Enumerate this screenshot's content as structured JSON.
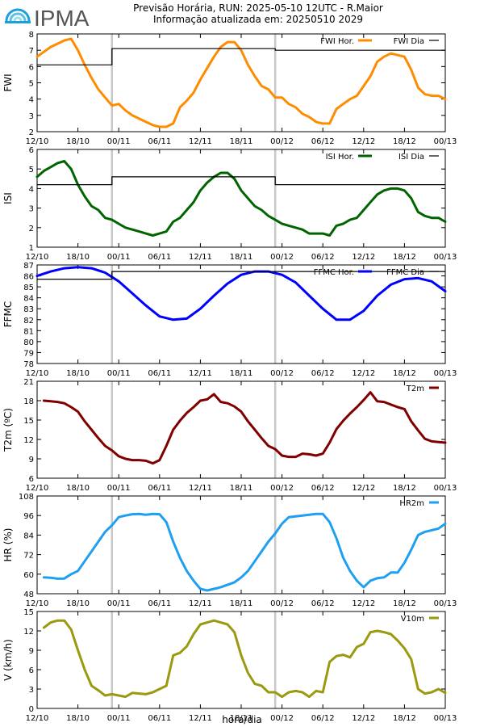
{
  "header": {
    "logo_text": "IPMA",
    "title_line1": "Previsão Horária, RUN: 2025-05-10 12UTC - R.Maior",
    "title_line2": "Informação atualizada em: 20250510 2029"
  },
  "chart_data": [
    {
      "type": "line",
      "ylabel": "FWI",
      "ylim": [
        2,
        8
      ],
      "yticks": [
        "2",
        "3",
        "4",
        "5",
        "6",
        "7",
        "8"
      ],
      "xticks": [
        "12/10",
        "18/10",
        "00/11",
        "06/11",
        "12/11",
        "18/11",
        "00/12",
        "06/12",
        "12/12",
        "18/12",
        "00/13"
      ],
      "xlim": [
        0,
        60
      ],
      "legend_position": "top-right",
      "colors": {
        "hourly": "#ff8c00",
        "daily": "#000000"
      },
      "series": [
        {
          "name": "FWI Hor.",
          "x": [
            0,
            1,
            2,
            3,
            4,
            5,
            6,
            7,
            8,
            9,
            10,
            11,
            12,
            13,
            14,
            15,
            16,
            17,
            18,
            19,
            20,
            21,
            22,
            23,
            24,
            25,
            26,
            27,
            28,
            29,
            30,
            31,
            32,
            33,
            34,
            35,
            36,
            37,
            38,
            39,
            40,
            41,
            42,
            43,
            44,
            45,
            46,
            47,
            48,
            49,
            50,
            51,
            52,
            53,
            54,
            55,
            56,
            57,
            58,
            59,
            60
          ],
          "values": [
            6.6,
            6.9,
            7.2,
            7.4,
            7.6,
            7.7,
            7.0,
            6.1,
            5.3,
            4.6,
            4.1,
            3.6,
            3.7,
            3.3,
            3.0,
            2.8,
            2.6,
            2.4,
            2.3,
            2.3,
            2.5,
            3.5,
            3.9,
            4.4,
            5.2,
            5.9,
            6.6,
            7.2,
            7.5,
            7.5,
            7.0,
            6.1,
            5.4,
            4.8,
            4.6,
            4.1,
            4.1,
            3.7,
            3.5,
            3.1,
            2.9,
            2.6,
            2.5,
            2.5,
            3.4,
            3.7,
            4.0,
            4.2,
            4.8,
            5.4,
            6.3,
            6.6,
            6.8,
            6.7,
            6.6,
            5.8,
            4.7,
            4.3,
            4.2,
            4.2,
            4.0
          ]
        },
        {
          "name": "FWI Dia",
          "x": [
            0,
            11,
            11,
            35,
            35,
            60
          ],
          "values": [
            6.1,
            6.1,
            7.1,
            7.1,
            7.0,
            7.0
          ]
        }
      ]
    },
    {
      "type": "line",
      "ylabel": "ISI",
      "ylim": [
        1,
        6
      ],
      "yticks": [
        "1",
        "2",
        "3",
        "4",
        "5",
        "6"
      ],
      "xticks": [
        "12/10",
        "18/10",
        "00/11",
        "06/11",
        "12/11",
        "18/11",
        "00/12",
        "06/12",
        "12/12",
        "18/12",
        "00/13"
      ],
      "xlim": [
        0,
        60
      ],
      "legend_position": "top-right",
      "colors": {
        "hourly": "#006400",
        "daily": "#000000"
      },
      "series": [
        {
          "name": "ISI Hor.",
          "x": [
            0,
            1,
            2,
            3,
            4,
            5,
            6,
            7,
            8,
            9,
            10,
            11,
            12,
            13,
            14,
            15,
            16,
            17,
            18,
            19,
            20,
            21,
            22,
            23,
            24,
            25,
            26,
            27,
            28,
            29,
            30,
            31,
            32,
            33,
            34,
            35,
            36,
            37,
            38,
            39,
            40,
            41,
            42,
            43,
            44,
            45,
            46,
            47,
            48,
            49,
            50,
            51,
            52,
            53,
            54,
            55,
            56,
            57,
            58,
            59,
            60
          ],
          "values": [
            4.6,
            4.9,
            5.1,
            5.3,
            5.4,
            5.0,
            4.2,
            3.6,
            3.1,
            2.9,
            2.5,
            2.4,
            2.2,
            2.0,
            1.9,
            1.8,
            1.7,
            1.6,
            1.7,
            1.8,
            2.3,
            2.5,
            2.9,
            3.3,
            3.9,
            4.3,
            4.6,
            4.8,
            4.8,
            4.5,
            3.9,
            3.5,
            3.1,
            2.9,
            2.6,
            2.4,
            2.2,
            2.1,
            2.0,
            1.9,
            1.7,
            1.7,
            1.7,
            1.6,
            2.1,
            2.2,
            2.4,
            2.5,
            2.9,
            3.3,
            3.7,
            3.9,
            4.0,
            4.0,
            3.9,
            3.5,
            2.8,
            2.6,
            2.5,
            2.5,
            2.3
          ]
        },
        {
          "name": "ISI Dia",
          "x": [
            0,
            11,
            11,
            35,
            35,
            60
          ],
          "values": [
            4.2,
            4.2,
            4.6,
            4.6,
            4.2,
            4.2
          ]
        }
      ]
    },
    {
      "type": "line",
      "ylabel": "FFMC",
      "ylim": [
        78,
        87
      ],
      "yticks": [
        "78",
        "79",
        "80",
        "81",
        "82",
        "83",
        "84",
        "85",
        "86",
        "87"
      ],
      "xticks": [
        "12/10",
        "18/10",
        "00/11",
        "06/11",
        "12/11",
        "18/11",
        "00/12",
        "06/12",
        "12/12",
        "18/12",
        "00/13"
      ],
      "xlim": [
        0,
        60
      ],
      "legend_position": "top-right",
      "colors": {
        "hourly": "#0000ff",
        "daily": "#000000"
      },
      "series": [
        {
          "name": "FFMC Hor.",
          "x": [
            0,
            2,
            4,
            6,
            8,
            10,
            12,
            14,
            16,
            18,
            20,
            22,
            24,
            26,
            28,
            30,
            32,
            34,
            36,
            38,
            40,
            42,
            44,
            46,
            48,
            50,
            52,
            54,
            56,
            58,
            60
          ],
          "values": [
            86.0,
            86.4,
            86.7,
            86.8,
            86.7,
            86.3,
            85.5,
            84.4,
            83.3,
            82.3,
            82.0,
            82.1,
            83.0,
            84.2,
            85.3,
            86.1,
            86.4,
            86.4,
            86.1,
            85.4,
            84.2,
            83.0,
            82.0,
            82.0,
            82.8,
            84.2,
            85.2,
            85.7,
            85.8,
            85.5,
            84.6
          ]
        },
        {
          "name": "FFMC Dia",
          "x": [
            0,
            11,
            11,
            35,
            35,
            60
          ],
          "values": [
            85.7,
            85.7,
            86.4,
            86.4,
            86.4,
            86.4
          ]
        }
      ]
    },
    {
      "type": "line",
      "ylabel": "T2m (ºC)",
      "ylim": [
        6,
        21
      ],
      "yticks": [
        "6",
        "9",
        "12",
        "15",
        "18",
        "21"
      ],
      "xticks": [
        "12/10",
        "18/10",
        "00/11",
        "06/11",
        "12/11",
        "18/11",
        "00/12",
        "06/12",
        "12/12",
        "18/12",
        "00/13"
      ],
      "xlim": [
        0,
        60
      ],
      "legend_position": "top-right",
      "colors": {
        "hourly": "#800000"
      },
      "series": [
        {
          "name": "T2m",
          "x": [
            1,
            2,
            3,
            4,
            5,
            6,
            7,
            8,
            9,
            10,
            11,
            12,
            13,
            14,
            15,
            16,
            17,
            18,
            19,
            20,
            21,
            22,
            23,
            24,
            25,
            26,
            27,
            28,
            29,
            30,
            31,
            32,
            33,
            34,
            35,
            36,
            37,
            38,
            39,
            40,
            41,
            42,
            43,
            44,
            45,
            46,
            47,
            48,
            49,
            50,
            51,
            52,
            53,
            54,
            55,
            56,
            57,
            58,
            59,
            60
          ],
          "values": [
            18.0,
            17.9,
            17.8,
            17.6,
            17.0,
            16.3,
            14.8,
            13.5,
            12.2,
            11.0,
            10.3,
            9.4,
            9.0,
            8.8,
            8.8,
            8.7,
            8.3,
            8.8,
            11.0,
            13.5,
            14.9,
            16.1,
            17.0,
            18.0,
            18.2,
            19.0,
            17.8,
            17.6,
            17.1,
            16.3,
            14.8,
            13.5,
            12.2,
            11.0,
            10.5,
            9.5,
            9.3,
            9.3,
            9.8,
            9.7,
            9.5,
            9.8,
            11.5,
            13.6,
            14.9,
            16.0,
            17.0,
            18.1,
            19.3,
            17.9,
            17.8,
            17.4,
            17.0,
            16.7,
            14.8,
            13.4,
            12.1,
            11.7,
            11.6,
            11.5
          ]
        }
      ]
    },
    {
      "type": "line",
      "ylabel": "HR (%)",
      "ylim": [
        48,
        108
      ],
      "yticks": [
        "48",
        "60",
        "72",
        "84",
        "96",
        "108"
      ],
      "xticks": [
        "12/10",
        "18/10",
        "00/11",
        "06/11",
        "12/11",
        "18/11",
        "00/12",
        "06/12",
        "12/12",
        "18/12",
        "00/13"
      ],
      "xlim": [
        0,
        60
      ],
      "legend_position": "top-right",
      "colors": {
        "hourly": "#1e9ff2"
      },
      "series": [
        {
          "name": "HR2m",
          "x": [
            1,
            2,
            3,
            4,
            5,
            6,
            7,
            8,
            9,
            10,
            11,
            12,
            13,
            14,
            15,
            16,
            17,
            18,
            19,
            20,
            21,
            22,
            23,
            24,
            25,
            26,
            27,
            28,
            29,
            30,
            31,
            32,
            33,
            34,
            35,
            36,
            37,
            38,
            39,
            40,
            41,
            42,
            43,
            44,
            45,
            46,
            47,
            48,
            49,
            50,
            51,
            52,
            53,
            54,
            55,
            56,
            57,
            58,
            59,
            60
          ],
          "values": [
            58.0,
            57.8,
            57.2,
            57.3,
            60.0,
            62.0,
            68.0,
            74.0,
            80.0,
            86.0,
            90.0,
            95.0,
            96.0,
            96.8,
            97.0,
            96.5,
            97.0,
            96.8,
            92.0,
            80.0,
            70.0,
            62.0,
            56.0,
            51.0,
            50.0,
            51.0,
            52.0,
            53.5,
            55.0,
            58.0,
            62.0,
            68.0,
            74.0,
            80.0,
            85.0,
            91.0,
            95.0,
            95.5,
            96.0,
            96.5,
            97.0,
            97.0,
            92.0,
            82.0,
            70.0,
            62.0,
            56.0,
            52.0,
            56.0,
            57.5,
            58.0,
            61.0,
            61.0,
            67.0,
            75.0,
            84.0,
            86.0,
            87.0,
            88.0,
            91.0
          ]
        }
      ]
    },
    {
      "type": "line",
      "ylabel": "V (km/h)",
      "ylim": [
        0,
        15
      ],
      "yticks": [
        "0",
        "3",
        "6",
        "9",
        "12",
        "15"
      ],
      "xticks": [
        "12/10",
        "18/10",
        "00/11",
        "06/11",
        "12/11",
        "18/11",
        "00/12",
        "06/12",
        "12/12",
        "18/12",
        "00/13"
      ],
      "xlim": [
        0,
        60
      ],
      "legend_position": "top-right",
      "colors": {
        "hourly": "#9a9a10"
      },
      "series": [
        {
          "name": "V10m",
          "x": [
            1,
            2,
            3,
            4,
            5,
            6,
            7,
            8,
            9,
            10,
            11,
            12,
            13,
            14,
            15,
            16,
            17,
            18,
            19,
            20,
            21,
            22,
            23,
            24,
            25,
            26,
            27,
            28,
            29,
            30,
            31,
            32,
            33,
            34,
            35,
            36,
            37,
            38,
            39,
            40,
            41,
            42,
            43,
            44,
            45,
            46,
            47,
            48,
            49,
            50,
            51,
            52,
            53,
            54,
            55,
            56,
            57,
            58,
            59,
            60
          ],
          "values": [
            12.5,
            13.3,
            13.6,
            13.6,
            12.2,
            9.0,
            6.0,
            3.5,
            2.8,
            2.0,
            2.2,
            2.0,
            1.8,
            2.4,
            2.3,
            2.2,
            2.5,
            3.0,
            3.5,
            8.2,
            8.6,
            9.6,
            11.5,
            13.0,
            13.3,
            13.6,
            13.3,
            13.0,
            11.8,
            8.2,
            5.5,
            3.8,
            3.5,
            2.5,
            2.5,
            1.8,
            2.5,
            2.7,
            2.5,
            1.8,
            2.7,
            2.5,
            7.2,
            8.1,
            8.3,
            7.9,
            9.5,
            10.0,
            11.8,
            12.0,
            11.8,
            11.5,
            10.5,
            9.3,
            7.6,
            3.0,
            2.3,
            2.5,
            3.0,
            2.4
          ]
        }
      ]
    }
  ],
  "xaxis_label": "hora/dia"
}
